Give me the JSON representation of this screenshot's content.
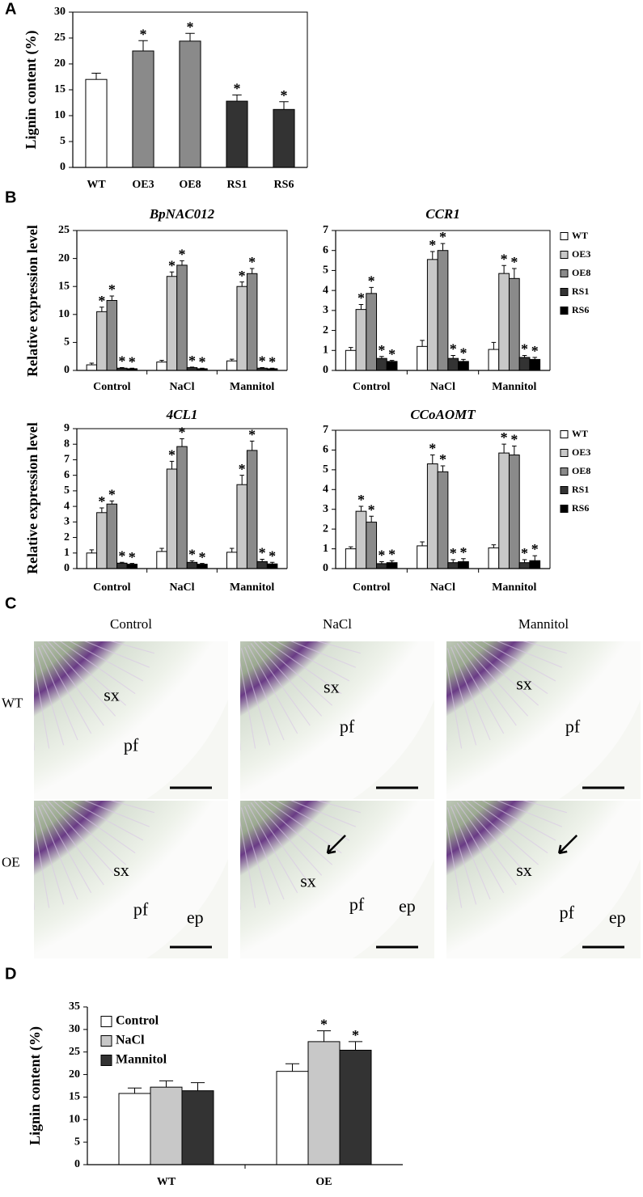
{
  "chart_data": [
    {
      "panel": "A",
      "type": "bar",
      "ylabel": "Lignin content (%)",
      "categories": [
        "WT",
        "OE3",
        "OE8",
        "RS1",
        "RS6"
      ],
      "values": [
        17,
        22.5,
        24.4,
        12.8,
        11.2
      ],
      "errors": [
        1.2,
        2,
        1.5,
        1.2,
        1.5
      ],
      "annotations": [
        null,
        "*",
        "*",
        "*",
        "*"
      ],
      "colors": [
        "#ffffff",
        "#8a8a8a",
        "#8a8a8a",
        "#333333",
        "#333333"
      ],
      "ylim": [
        0,
        30
      ],
      "yticks": [
        0,
        5,
        10,
        15,
        20,
        25,
        30
      ]
    },
    {
      "panel": "B",
      "type": "bar",
      "title": "BpNAC012",
      "ylabel": "Relative expression level",
      "categories": [
        "Control",
        "NaCl",
        "Mannitol"
      ],
      "series": [
        {
          "color": "#ffffff",
          "values": [
            1,
            1.5,
            1.7
          ],
          "errors": [
            0.3,
            0.3,
            0.3
          ],
          "annotations": [
            null,
            null,
            null
          ]
        },
        {
          "color": "#c8c8c8",
          "values": [
            10.5,
            16.8,
            15
          ],
          "errors": [
            0.8,
            0.8,
            0.8
          ],
          "annotations": [
            "*",
            "*",
            "*"
          ]
        },
        {
          "color": "#8a8a8a",
          "values": [
            12.5,
            18.8,
            17.3
          ],
          "errors": [
            0.8,
            0.8,
            0.9
          ],
          "annotations": [
            "*",
            "*",
            "*"
          ]
        },
        {
          "color": "#333333",
          "values": [
            0.4,
            0.5,
            0.4
          ],
          "errors": [
            0.1,
            0.1,
            0.1
          ],
          "annotations": [
            "*",
            "*",
            "*"
          ]
        },
        {
          "color": "#000000",
          "values": [
            0.3,
            0.3,
            0.3
          ],
          "errors": [
            0.1,
            0.1,
            0.1
          ],
          "annotations": [
            "*",
            "*",
            "*"
          ]
        }
      ],
      "ylim": [
        0,
        25
      ],
      "yticks": [
        0,
        5,
        10,
        15,
        20,
        25
      ]
    },
    {
      "type": "bar",
      "title": "CCR1",
      "legend": "right",
      "categories": [
        "Control",
        "NaCl",
        "Mannitol"
      ],
      "series": [
        {
          "name": "WT",
          "color": "#ffffff",
          "values": [
            1,
            1.2,
            1.05
          ],
          "errors": [
            0.15,
            0.3,
            0.35
          ],
          "annotations": [
            null,
            null,
            null
          ]
        },
        {
          "name": "OE3",
          "color": "#c8c8c8",
          "values": [
            3.05,
            5.55,
            4.85
          ],
          "errors": [
            0.25,
            0.4,
            0.4
          ],
          "annotations": [
            "*",
            "*",
            "*"
          ]
        },
        {
          "name": "OE8",
          "color": "#8a8a8a",
          "values": [
            3.85,
            6.0,
            4.6
          ],
          "errors": [
            0.3,
            0.35,
            0.5
          ],
          "annotations": [
            "*",
            "*",
            "*"
          ]
        },
        {
          "name": "RS1",
          "color": "#333333",
          "values": [
            0.6,
            0.6,
            0.65
          ],
          "errors": [
            0.1,
            0.15,
            0.1
          ],
          "annotations": [
            "*",
            "*",
            "*"
          ]
        },
        {
          "name": "RS6",
          "color": "#000000",
          "values": [
            0.45,
            0.45,
            0.55
          ],
          "errors": [
            0.05,
            0.1,
            0.1
          ],
          "annotations": [
            "*",
            "*",
            "*"
          ]
        }
      ],
      "ylim": [
        0,
        7
      ],
      "yticks": [
        0,
        1,
        2,
        3,
        4,
        5,
        6,
        7
      ]
    },
    {
      "type": "bar",
      "title": "4CL1",
      "ylabel": "Relative expression level",
      "categories": [
        "Control",
        "NaCl",
        "Mannitol"
      ],
      "series": [
        {
          "color": "#ffffff",
          "values": [
            1,
            1.1,
            1.05
          ],
          "errors": [
            0.2,
            0.2,
            0.25
          ],
          "annotations": [
            null,
            null,
            null
          ]
        },
        {
          "color": "#c8c8c8",
          "values": [
            3.6,
            6.4,
            5.4
          ],
          "errors": [
            0.3,
            0.5,
            0.6
          ],
          "annotations": [
            "*",
            "*",
            "*"
          ]
        },
        {
          "color": "#8a8a8a",
          "values": [
            4.15,
            7.85,
            7.6
          ],
          "errors": [
            0.2,
            0.5,
            0.6
          ],
          "annotations": [
            "*",
            "*",
            "*"
          ]
        },
        {
          "color": "#333333",
          "values": [
            0.35,
            0.4,
            0.45
          ],
          "errors": [
            0.05,
            0.1,
            0.15
          ],
          "annotations": [
            "*",
            "*",
            "*"
          ]
        },
        {
          "color": "#000000",
          "values": [
            0.28,
            0.28,
            0.3
          ],
          "errors": [
            0.05,
            0.05,
            0.1
          ],
          "annotations": [
            "*",
            "*",
            "*"
          ]
        }
      ],
      "ylim": [
        0,
        9
      ],
      "yticks": [
        0,
        1,
        2,
        3,
        4,
        5,
        6,
        7,
        8,
        9
      ]
    },
    {
      "type": "bar",
      "title": "CCoAOMT",
      "legend": "right",
      "categories": [
        "Control",
        "NaCl",
        "Mannitol"
      ],
      "series": [
        {
          "name": "WT",
          "color": "#ffffff",
          "values": [
            1,
            1.15,
            1.05
          ],
          "errors": [
            0.1,
            0.2,
            0.15
          ],
          "annotations": [
            null,
            null,
            null
          ]
        },
        {
          "name": "OE3",
          "color": "#c8c8c8",
          "values": [
            2.9,
            5.3,
            5.85
          ],
          "errors": [
            0.25,
            0.45,
            0.45
          ],
          "annotations": [
            "*",
            "*",
            "*"
          ]
        },
        {
          "name": "OE8",
          "color": "#8a8a8a",
          "values": [
            2.35,
            4.9,
            5.75
          ],
          "errors": [
            0.3,
            0.3,
            0.45
          ],
          "annotations": [
            "*",
            "*",
            "*"
          ]
        },
        {
          "name": "RS1",
          "color": "#333333",
          "values": [
            0.25,
            0.3,
            0.3
          ],
          "errors": [
            0.1,
            0.15,
            0.15
          ],
          "annotations": [
            "*",
            "*",
            "*"
          ]
        },
        {
          "name": "RS6",
          "color": "#000000",
          "values": [
            0.3,
            0.35,
            0.4
          ],
          "errors": [
            0.1,
            0.15,
            0.25
          ],
          "annotations": [
            "*",
            "*",
            "*"
          ]
        }
      ],
      "ylim": [
        0,
        7
      ],
      "yticks": [
        0,
        1,
        2,
        3,
        4,
        5,
        6,
        7
      ]
    },
    {
      "panel": "D",
      "type": "bar",
      "ylabel": "Lignin content (%)",
      "legend": "upper left",
      "categories": [
        "WT",
        "OE"
      ],
      "series": [
        {
          "name": "Control",
          "color": "#ffffff",
          "values": [
            15.8,
            20.7
          ],
          "errors": [
            1.2,
            1.7
          ],
          "annotations": [
            null,
            null
          ]
        },
        {
          "name": "NaCl",
          "color": "#c8c8c8",
          "values": [
            17.2,
            27.3
          ],
          "errors": [
            1.4,
            2.4
          ],
          "annotations": [
            null,
            "*"
          ]
        },
        {
          "name": "Mannitol",
          "color": "#333333",
          "values": [
            16.4,
            25.4
          ],
          "errors": [
            1.8,
            1.9
          ],
          "annotations": [
            null,
            "*"
          ]
        }
      ],
      "ylim": [
        0,
        35
      ],
      "yticks": [
        0,
        5,
        10,
        15,
        20,
        25,
        30,
        35
      ]
    }
  ],
  "micrographs": {
    "panel": "C",
    "columns": [
      "Control",
      "NaCl",
      "Mannitol"
    ],
    "rows": [
      "WT",
      "OE"
    ],
    "images": [
      [
        {
          "labels": [
            "sx",
            "pf"
          ]
        },
        {
          "labels": [
            "sx",
            "pf"
          ]
        },
        {
          "labels": [
            "sx",
            "pf"
          ]
        }
      ],
      [
        {
          "labels": [
            "sx",
            "pf",
            "ep"
          ]
        },
        {
          "labels": [
            "sx",
            "pf",
            "ep"
          ]
        },
        {
          "labels": [
            "sx",
            "pf",
            "ep"
          ]
        }
      ]
    ]
  }
}
